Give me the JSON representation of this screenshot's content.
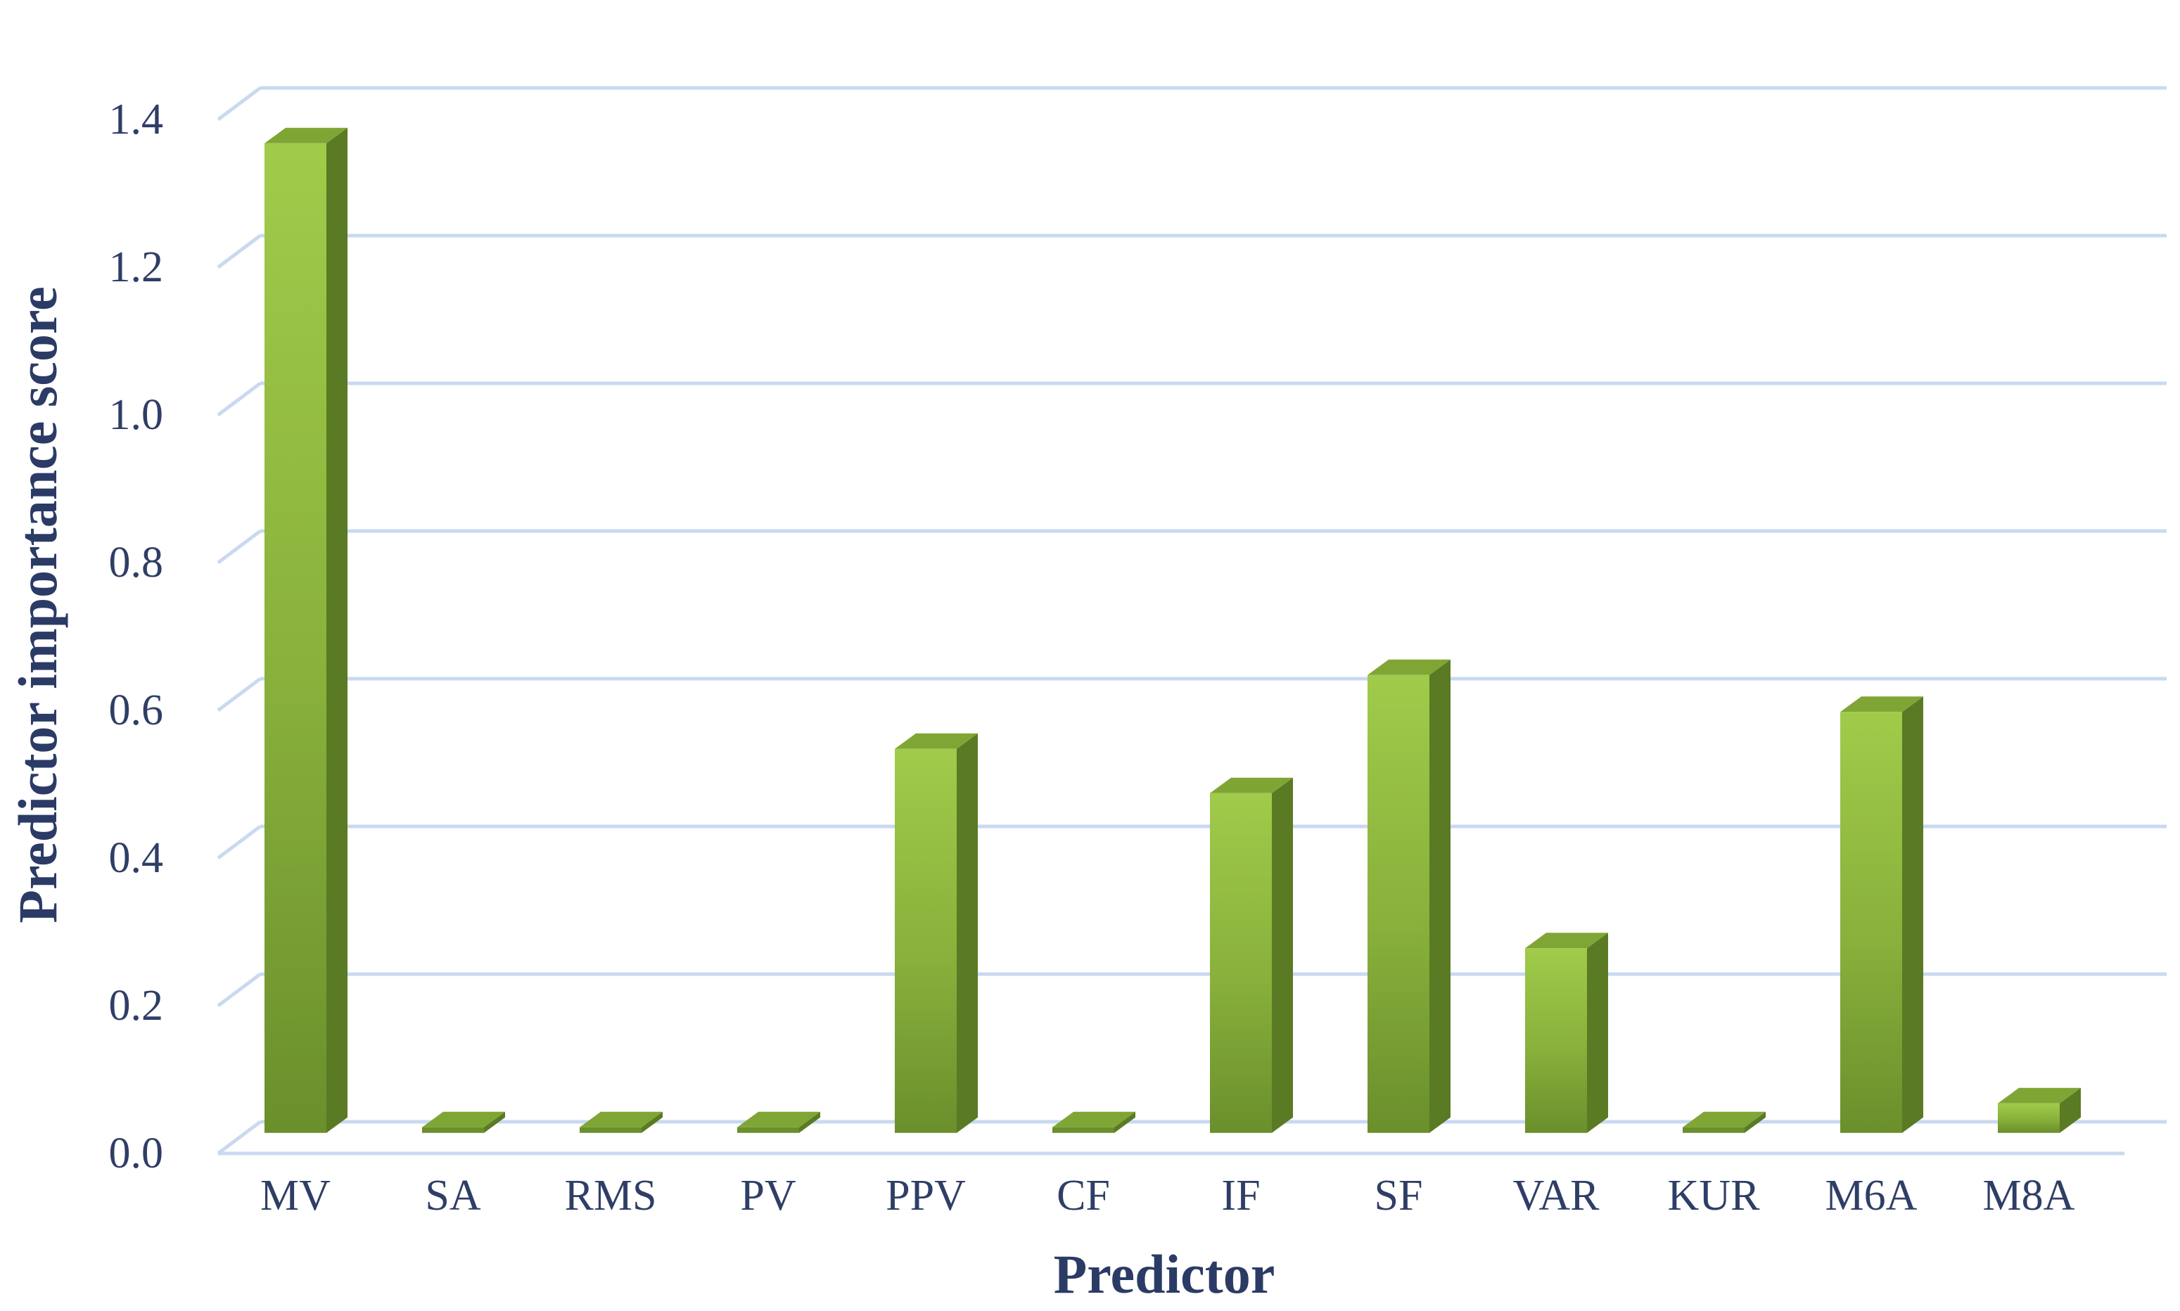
{
  "chart_data": {
    "type": "bar",
    "title": "",
    "xlabel": "Predictor",
    "ylabel": "Predictor importance score",
    "categories": [
      "MV",
      "SA",
      "RMS",
      "PV",
      "PPV",
      "CF",
      "IF",
      "SF",
      "VAR",
      "KUR",
      "M6A",
      "M8A"
    ],
    "values": [
      1.34,
      0,
      0,
      0,
      0.52,
      0,
      0.46,
      0.62,
      0.25,
      0,
      0.57,
      0.04
    ],
    "ylim": [
      0,
      1.4
    ],
    "yticks": [
      "0.0",
      "0.2",
      "0.4",
      "0.6",
      "0.8",
      "1.0",
      "1.2",
      "1.4"
    ],
    "grid": true,
    "style": "3d-column",
    "colors": {
      "bar_light": "#9dc647",
      "bar_mid": "#86ae3a",
      "bar_dark": "#6a8f2c",
      "bar_side": "#5a7a24",
      "bar_top": "#7fa634",
      "gridline": "#c9d9f0",
      "text": "#2f3e66"
    }
  }
}
